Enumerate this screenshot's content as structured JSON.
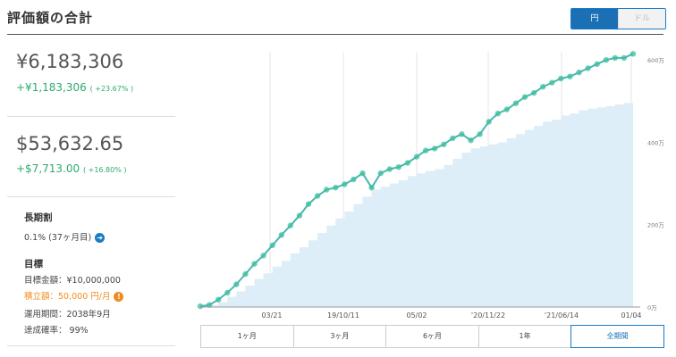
{
  "header": {
    "title": "評価額の合計",
    "currency_yen": "円",
    "currency_usd": "ドル"
  },
  "summary": {
    "yen_value": "¥6,183,306",
    "yen_gain": "+¥1,183,306",
    "yen_gain_pct": "( +23.67% )",
    "usd_value": "$53,632.65",
    "usd_gain": "+$7,713.00",
    "usd_gain_pct": "( +16.80% )"
  },
  "long_term": {
    "label": "長期割",
    "value": "0.1% (37ヶ月目)"
  },
  "goal": {
    "label": "目標",
    "target": "目標金額：¥10,000,000",
    "contribution": "積立額：50,000 円/月",
    "period": "運用期間：2038年9月",
    "probability": "達成確率： 99%"
  },
  "ranges": [
    "1ヶ月",
    "3ヶ月",
    "6ヶ月",
    "1年",
    "全期間"
  ],
  "active_range": "全期間",
  "colors": {
    "line": "#4ab5b5",
    "area": "#ddeef8",
    "accent": "#1a6fb5",
    "orange": "#f08c1e",
    "green": "#2eaa6e"
  },
  "chart_data": {
    "type": "area",
    "xlabel": "",
    "ylabel": "",
    "x_ticks": [
      "03/21",
      "19/10/11",
      "05/02",
      "'20/11/22",
      "'21/06/14",
      "01/04"
    ],
    "y_ticks": [
      "0万",
      "200万",
      "400万",
      "600万"
    ],
    "ylim": [
      0,
      620
    ],
    "series": [
      {
        "values": [
          2,
          5,
          18,
          35,
          55,
          80,
          105,
          125,
          150,
          175,
          198,
          222,
          250,
          270,
          285,
          290,
          298,
          310,
          325,
          290,
          325,
          335,
          340,
          350,
          365,
          380,
          385,
          395,
          410,
          420,
          405,
          420,
          450,
          470,
          480,
          495,
          510,
          520,
          535,
          545,
          555,
          560,
          570,
          580,
          590,
          600,
          605,
          605,
          615
        ]
      },
      {
        "values": [
          2,
          5,
          12,
          25,
          38,
          52,
          68,
          82,
          98,
          112,
          130,
          145,
          162,
          180,
          198,
          215,
          232,
          250,
          268,
          285,
          292,
          300,
          308,
          318,
          325,
          330,
          335,
          345,
          360,
          375,
          385,
          390,
          395,
          400,
          410,
          420,
          430,
          440,
          450,
          455,
          465,
          470,
          478,
          482,
          485,
          488,
          492,
          496,
          500
        ]
      }
    ]
  }
}
